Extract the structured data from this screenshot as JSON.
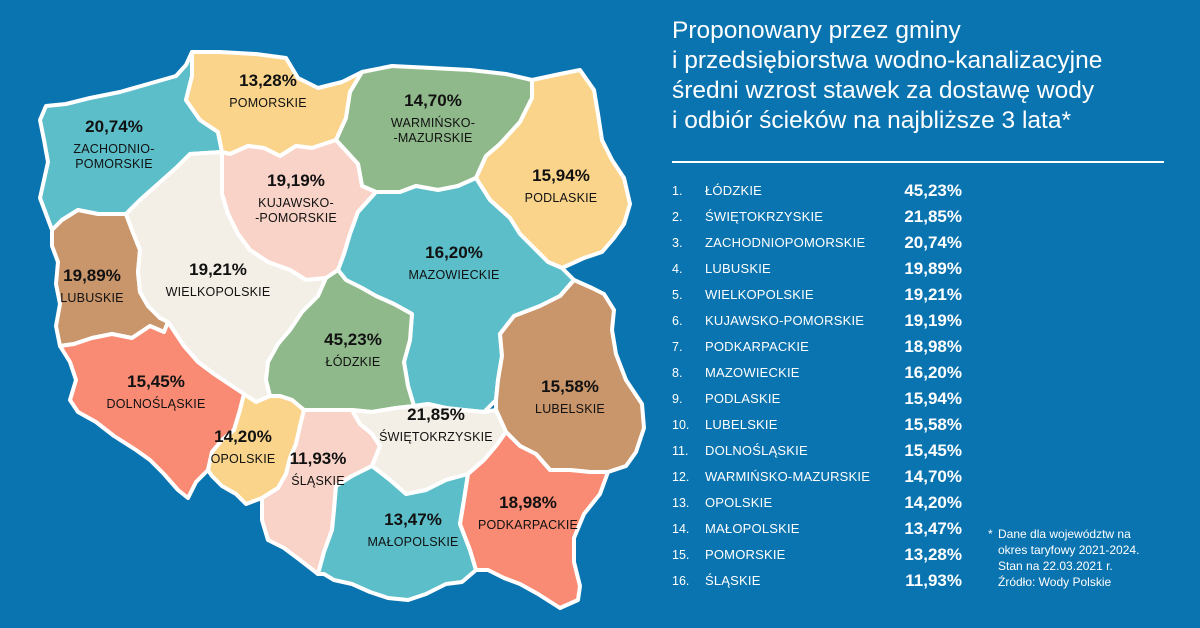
{
  "title_lines": [
    "Proponowany przez gminy",
    "i przedsiębiorstwa wodno-kanalizacyjne",
    "średni wzrost stawek za dostawę wody",
    "i odbiór ścieków na najbliższe 3 lata*"
  ],
  "ranking": [
    {
      "rank": "1.",
      "name": "ŁÓDZKIE",
      "value": "45,23%"
    },
    {
      "rank": "2.",
      "name": "ŚWIĘTOKRZYSKIE",
      "value": "21,85%"
    },
    {
      "rank": "3.",
      "name": "ZACHODNIOPOMORSKIE",
      "value": "20,74%"
    },
    {
      "rank": "4.",
      "name": "LUBUSKIE",
      "value": "19,89%"
    },
    {
      "rank": "5.",
      "name": "WIELKOPOLSKIE",
      "value": "19,21%"
    },
    {
      "rank": "6.",
      "name": "KUJAWSKO-POMORSKIE",
      "value": "19,19%"
    },
    {
      "rank": "7.",
      "name": "PODKARPACKIE",
      "value": "18,98%"
    },
    {
      "rank": "8.",
      "name": "MAZOWIECKIE",
      "value": "16,20%"
    },
    {
      "rank": "9.",
      "name": "PODLASKIE",
      "value": "15,94%"
    },
    {
      "rank": "10.",
      "name": "LUBELSKIE",
      "value": "15,58%"
    },
    {
      "rank": "11.",
      "name": "DOLNOŚLĄSKIE",
      "value": "15,45%"
    },
    {
      "rank": "12.",
      "name": "WARMIŃSKO-MAZURSKIE",
      "value": "14,70%"
    },
    {
      "rank": "13.",
      "name": "OPOLSKIE",
      "value": "14,20%"
    },
    {
      "rank": "14.",
      "name": "MAŁOPOLSKIE",
      "value": "13,47%"
    },
    {
      "rank": "15.",
      "name": "POMORSKIE",
      "value": "13,28%"
    },
    {
      "rank": "16.",
      "name": "ŚLĄSKIE",
      "value": "11,93%"
    }
  ],
  "map_regions": {
    "zachodniopomorskie": {
      "value": "20,74%",
      "name_lines": [
        "ZACHODNIO-",
        "POMORSKIE"
      ],
      "color": "#5bbec9"
    },
    "pomorskie": {
      "value": "13,28%",
      "name_lines": [
        "POMORSKIE"
      ],
      "color": "#fad48b"
    },
    "warminsko_mazurskie": {
      "value": "14,70%",
      "name_lines": [
        "WARMIŃSKO-",
        "-MAZURSKIE"
      ],
      "color": "#8fb98a"
    },
    "podlaskie": {
      "value": "15,94%",
      "name_lines": [
        "PODLASKIE"
      ],
      "color": "#fad48b"
    },
    "kujawsko_pomorskie": {
      "value": "19,19%",
      "name_lines": [
        "KUJAWSKO-",
        "-POMORSKIE"
      ],
      "color": "#f9d3c7"
    },
    "lubuskie": {
      "value": "19,89%",
      "name_lines": [
        "LUBUSKIE"
      ],
      "color": "#c9956a"
    },
    "wielkopolskie": {
      "value": "19,21%",
      "name_lines": [
        "WIELKOPOLSKIE"
      ],
      "color": "#f4efe6"
    },
    "mazowieckie": {
      "value": "16,20%",
      "name_lines": [
        "MAZOWIECKIE"
      ],
      "color": "#5bbec9"
    },
    "lodzkie": {
      "value": "45,23%",
      "name_lines": [
        "ŁÓDZKIE"
      ],
      "color": "#8fb98a"
    },
    "lubelskie": {
      "value": "15,58%",
      "name_lines": [
        "LUBELSKIE"
      ],
      "color": "#c9956a"
    },
    "dolnoslaskie": {
      "value": "15,45%",
      "name_lines": [
        "DOLNOŚLĄSKIE"
      ],
      "color": "#f98b74"
    },
    "opolskie": {
      "value": "14,20%",
      "name_lines": [
        "OPOLSKIE"
      ],
      "color": "#fad48b"
    },
    "slaskie": {
      "value": "11,93%",
      "name_lines": [
        "ŚLĄSKIE"
      ],
      "color": "#f9d3c7"
    },
    "swietokrzyskie": {
      "value": "21,85%",
      "name_lines": [
        "ŚWIĘTOKRZYSKIE"
      ],
      "color": "#f4efe6"
    },
    "malopolskie": {
      "value": "13,47%",
      "name_lines": [
        "MAŁOPOLSKIE"
      ],
      "color": "#5bbec9"
    },
    "podkarpackie": {
      "value": "18,98%",
      "name_lines": [
        "PODKARPACKIE"
      ],
      "color": "#f98b74"
    }
  },
  "footnote_lines": [
    "Dane dla województw na",
    "okres taryfowy 2021-2024.",
    "Stan na 22.03.2021 r.",
    "Źródło: Wody Polskie"
  ],
  "footnote_marker": "*",
  "colors": {
    "background": "#0a74b0",
    "text": "#ffffff"
  }
}
